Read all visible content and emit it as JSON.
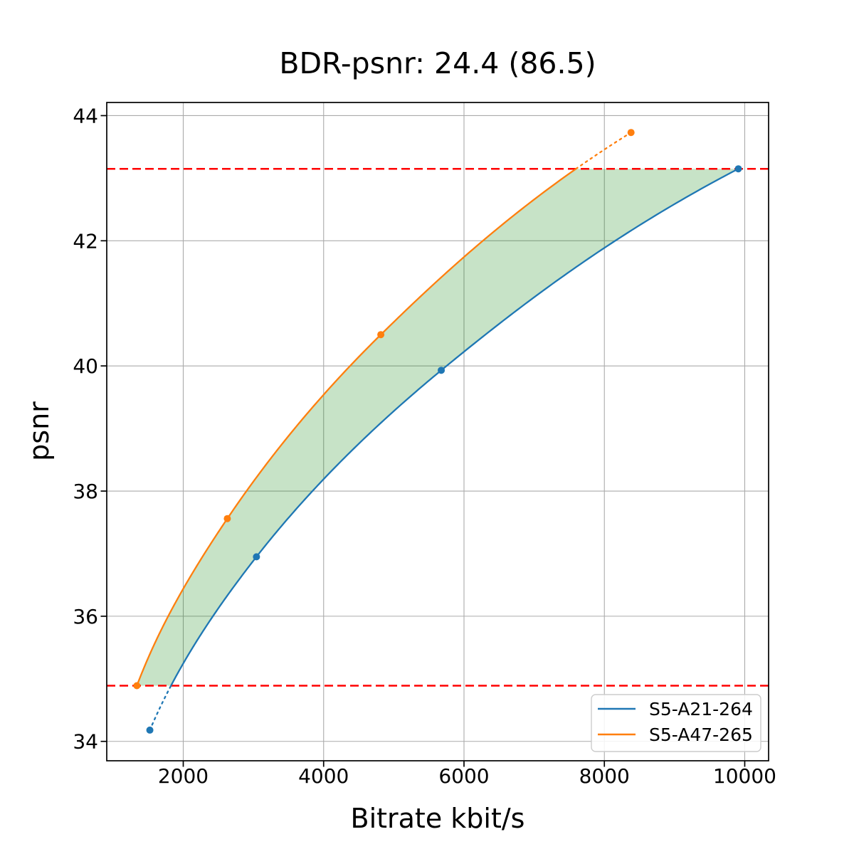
{
  "chart_data": {
    "type": "line",
    "title": "BDR-psnr: 24.4 (86.5)",
    "xlabel": "Bitrate kbit/s",
    "ylabel": "psnr",
    "xlim": [
      910,
      10340
    ],
    "ylim": [
      33.69,
      44.21
    ],
    "xticks": [
      2000,
      4000,
      6000,
      8000,
      10000
    ],
    "xtick_labels": [
      "2000",
      "4000",
      "6000",
      "8000",
      "10000"
    ],
    "yticks": [
      34,
      36,
      38,
      40,
      42,
      44
    ],
    "ytick_labels": [
      "34",
      "36",
      "38",
      "40",
      "42",
      "44"
    ],
    "grid": true,
    "grid_color": "#ababab",
    "legend_position": "lower right",
    "series": [
      {
        "name": "S5-A21-264",
        "color": "#1f77b4",
        "x": [
          1524,
          3043,
          5676,
          9909
        ],
        "y": [
          34.18,
          36.95,
          39.93,
          43.15
        ]
      },
      {
        "name": "S5-A47-265",
        "color": "#ff7f0e",
        "x": [
          1339,
          2628,
          4815,
          8380
        ],
        "y": [
          34.89,
          37.56,
          40.5,
          43.73
        ]
      }
    ],
    "integration_bounds": {
      "lower_psnr": 34.89,
      "upper_psnr": 43.15,
      "line_color": "#ff0000",
      "line_style": "dashed"
    },
    "fill_between": {
      "color": "#008000",
      "opacity": 0.22,
      "between": [
        "S5-A47-265",
        "S5-A21-264"
      ],
      "clip_lower": 34.89,
      "clip_upper": 43.15
    }
  }
}
